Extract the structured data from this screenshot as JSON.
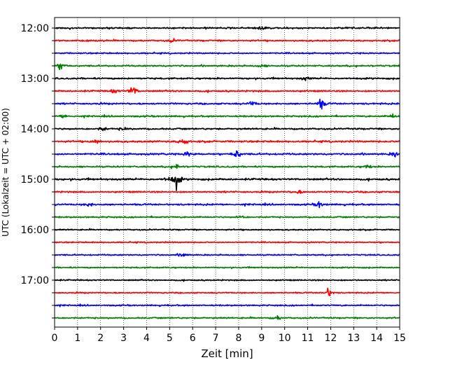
{
  "chart_data": {
    "type": "line",
    "chart_kind": "helicorder (stacked seismogram traces)",
    "xlabel": "Zeit  [min]",
    "ylabel": "UTC (Lokalzeit = UTC + 02:00)",
    "xlim": [
      0,
      15
    ],
    "x_ticks": [
      "0",
      "1",
      "2",
      "3",
      "4",
      "5",
      "6",
      "7",
      "8",
      "9",
      "10",
      "11",
      "12",
      "13",
      "14",
      "15"
    ],
    "y_tick_labels": [
      "12:00",
      "13:00",
      "14:00",
      "15:00",
      "16:00",
      "17:00"
    ],
    "grid": "vertical dotted lines at each minute",
    "trace_interval_minutes": 15,
    "trace_colors_cycle": [
      "#000000",
      "#ff0000",
      "#0000ff",
      "#008000"
    ],
    "series": [
      {
        "start_utc": "12:00",
        "color": "#000000",
        "level": 0.45,
        "events": [
          {
            "x": 9.0,
            "amp": 0.35
          }
        ]
      },
      {
        "start_utc": "12:15",
        "color": "#ff0000",
        "level": 0.4,
        "events": [
          {
            "x": 5.1,
            "amp": 0.3
          }
        ]
      },
      {
        "start_utc": "12:30",
        "color": "#0000ff",
        "level": 0.3,
        "events": []
      },
      {
        "start_utc": "12:45",
        "color": "#008000",
        "level": 0.45,
        "events": [
          {
            "x": 0.3,
            "amp": 0.8
          },
          {
            "x": 9.0,
            "amp": 0.3
          }
        ]
      },
      {
        "start_utc": "13:00",
        "color": "#000000",
        "level": 0.5,
        "events": [
          {
            "x": 10.9,
            "amp": 0.35
          }
        ]
      },
      {
        "start_utc": "13:15",
        "color": "#ff0000",
        "level": 0.5,
        "events": [
          {
            "x": 3.4,
            "amp": 1.0
          },
          {
            "x": 2.6,
            "amp": 0.4
          }
        ]
      },
      {
        "start_utc": "13:30",
        "color": "#0000ff",
        "level": 0.5,
        "events": [
          {
            "x": 8.6,
            "amp": 0.5
          },
          {
            "x": 11.6,
            "amp": 1.0
          }
        ]
      },
      {
        "start_utc": "13:45",
        "color": "#008000",
        "level": 0.45,
        "events": [
          {
            "x": 0.4,
            "amp": 0.4
          },
          {
            "x": 14.7,
            "amp": 0.4
          }
        ]
      },
      {
        "start_utc": "14:00",
        "color": "#000000",
        "level": 0.5,
        "events": [
          {
            "x": 2.1,
            "amp": 0.4
          },
          {
            "x": 3.0,
            "amp": 0.35
          }
        ]
      },
      {
        "start_utc": "14:15",
        "color": "#ff0000",
        "level": 0.6,
        "events": [
          {
            "x": 5.6,
            "amp": 0.7
          },
          {
            "x": 1.8,
            "amp": 0.4
          }
        ]
      },
      {
        "start_utc": "14:30",
        "color": "#0000ff",
        "level": 0.6,
        "events": [
          {
            "x": 7.9,
            "amp": 1.0
          },
          {
            "x": 5.8,
            "amp": 0.5
          },
          {
            "x": 14.8,
            "amp": 0.5
          }
        ]
      },
      {
        "start_utc": "14:45",
        "color": "#008000",
        "level": 0.45,
        "events": [
          {
            "x": 5.3,
            "amp": 0.5
          },
          {
            "x": 13.6,
            "amp": 0.4
          }
        ]
      },
      {
        "start_utc": "15:00",
        "color": "#000000",
        "level": 0.7,
        "events": [
          {
            "x": 5.3,
            "amp": 1.6
          },
          {
            "x": 4.9,
            "amp": 0.4
          }
        ]
      },
      {
        "start_utc": "15:15",
        "color": "#ff0000",
        "level": 0.45,
        "events": [
          {
            "x": 10.6,
            "amp": 0.4
          }
        ]
      },
      {
        "start_utc": "15:30",
        "color": "#0000ff",
        "level": 0.5,
        "events": [
          {
            "x": 1.5,
            "amp": 0.45
          },
          {
            "x": 11.5,
            "amp": 0.6
          }
        ]
      },
      {
        "start_utc": "15:45",
        "color": "#008000",
        "level": 0.35,
        "events": [
          {
            "x": 8.1,
            "amp": 0.35
          }
        ]
      },
      {
        "start_utc": "16:00",
        "color": "#000000",
        "level": 0.25,
        "events": []
      },
      {
        "start_utc": "16:15",
        "color": "#ff0000",
        "level": 0.2,
        "events": []
      },
      {
        "start_utc": "16:30",
        "color": "#0000ff",
        "level": 0.25,
        "events": [
          {
            "x": 5.6,
            "amp": 0.45
          }
        ]
      },
      {
        "start_utc": "16:45",
        "color": "#008000",
        "level": 0.25,
        "events": []
      },
      {
        "start_utc": "17:00",
        "color": "#000000",
        "level": 0.25,
        "events": []
      },
      {
        "start_utc": "17:15",
        "color": "#ff0000",
        "level": 0.2,
        "events": [
          {
            "x": 11.9,
            "amp": 0.9
          }
        ]
      },
      {
        "start_utc": "17:30",
        "color": "#0000ff",
        "level": 0.3,
        "events": []
      },
      {
        "start_utc": "17:45",
        "color": "#008000",
        "level": 0.35,
        "events": [
          {
            "x": 9.7,
            "amp": 0.4
          }
        ]
      }
    ]
  }
}
